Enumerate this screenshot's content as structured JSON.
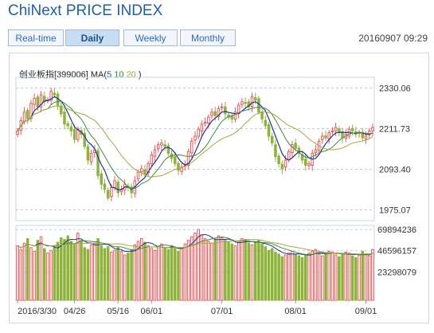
{
  "header": {
    "title": "ChiNext PRICE INDEX",
    "timestamp": "20160907 09:29"
  },
  "tabs": [
    {
      "label": "Real-time",
      "active": false
    },
    {
      "label": "Daily",
      "active": true
    },
    {
      "label": "Weekly",
      "active": false
    },
    {
      "label": "Monthly",
      "active": false
    }
  ],
  "legend": {
    "name": "创业板指",
    "code": "[399006]",
    "ma_label": "MA(",
    "ma5": "5",
    "ma10": "10",
    "ma20": "20",
    "close": " )"
  },
  "colors": {
    "up": "#e85a5a",
    "down": "#8db33a",
    "ma5": "#1d2fa8",
    "ma10": "#3d8f3d",
    "ma20": "#a6a83c",
    "grid": "#b9c9e8"
  },
  "chart_data": {
    "type": "candlestick",
    "price_ticks": [
      "2330.06",
      "2211.73",
      "2093.40",
      "1975.07"
    ],
    "volume_ticks": [
      "69894236",
      "46596157",
      "23298079"
    ],
    "x_labels": [
      "2016/3/30",
      "04/26",
      "05/16",
      "06/01",
      "07/01",
      "08/01",
      "09/01"
    ],
    "x_label_days": [
      0,
      17,
      30,
      40,
      61,
      83,
      104
    ],
    "price_range": [
      1960,
      2345
    ],
    "volume_range": [
      0,
      70000000
    ],
    "days": 107,
    "closes": [
      2205,
      2235,
      2260,
      2240,
      2285,
      2300,
      2275,
      2310,
      2290,
      2295,
      2320,
      2310,
      2280,
      2255,
      2225,
      2220,
      2205,
      2180,
      2210,
      2195,
      2160,
      2120,
      2140,
      2150,
      2075,
      2050,
      2035,
      2010,
      2040,
      2060,
      2025,
      2035,
      2050,
      2040,
      2025,
      2060,
      2085,
      2095,
      2080,
      2110,
      2135,
      2150,
      2165,
      2170,
      2160,
      2140,
      2125,
      2110,
      2090,
      2100,
      2105,
      2145,
      2175,
      2190,
      2210,
      2225,
      2230,
      2245,
      2260,
      2250,
      2270,
      2275,
      2255,
      2245,
      2240,
      2260,
      2280,
      2290,
      2285,
      2275,
      2305,
      2295,
      2260,
      2240,
      2220,
      2190,
      2170,
      2130,
      2110,
      2095,
      2120,
      2145,
      2165,
      2155,
      2140,
      2120,
      2105,
      2110,
      2140,
      2150,
      2175,
      2190,
      2185,
      2200,
      2205,
      2215,
      2200,
      2185,
      2195,
      2210,
      2205,
      2195,
      2200,
      2185,
      2190,
      2205,
      2215
    ],
    "volumes": [
      52,
      48,
      55,
      60,
      50,
      46,
      58,
      62,
      49,
      44,
      47,
      52,
      56,
      61,
      59,
      63,
      57,
      54,
      66,
      58,
      50,
      48,
      53,
      55,
      60,
      52,
      49,
      51,
      45,
      47,
      50,
      46,
      42,
      44,
      48,
      53,
      57,
      60,
      56,
      52,
      49,
      47,
      51,
      54,
      50,
      48,
      52,
      49,
      46,
      50,
      54,
      58,
      62,
      66,
      70,
      64,
      60,
      57,
      55,
      59,
      63,
      61,
      58,
      56,
      54,
      52,
      57,
      60,
      59,
      55,
      53,
      56,
      58,
      54,
      51,
      47,
      49,
      45,
      43,
      40,
      42,
      44,
      46,
      43,
      41,
      39,
      42,
      44,
      46,
      48,
      43,
      41,
      44,
      46,
      45,
      42,
      40,
      43,
      45,
      44,
      41,
      39,
      42,
      46,
      43,
      41,
      48
    ]
  }
}
